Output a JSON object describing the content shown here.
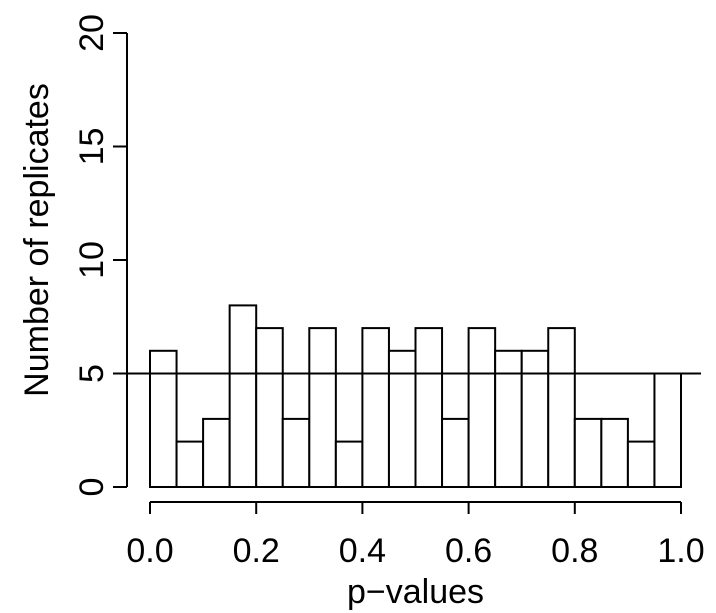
{
  "chart_data": {
    "type": "bar",
    "xlabel": "p−values",
    "ylabel": "Number of replicates",
    "xlim": [
      0,
      1
    ],
    "ylim": [
      0,
      20
    ],
    "xticks": [
      "0.0",
      "0.2",
      "0.4",
      "0.6",
      "0.8",
      "1.0"
    ],
    "yticks": [
      "0",
      "5",
      "10",
      "15",
      "20"
    ],
    "bin_width": 0.05,
    "bins": [
      0.0,
      0.05,
      0.1,
      0.15,
      0.2,
      0.25,
      0.3,
      0.35,
      0.4,
      0.45,
      0.5,
      0.55,
      0.6,
      0.65,
      0.7,
      0.75,
      0.8,
      0.85,
      0.9,
      0.95
    ],
    "values": [
      6,
      2,
      3,
      8,
      7,
      3,
      7,
      2,
      7,
      6,
      7,
      3,
      7,
      6,
      6,
      7,
      3,
      3,
      2,
      5
    ],
    "reference_line_y": 5,
    "bar_fill": "#ffffff",
    "bar_stroke": "#000000",
    "grid": false,
    "legend": false
  }
}
